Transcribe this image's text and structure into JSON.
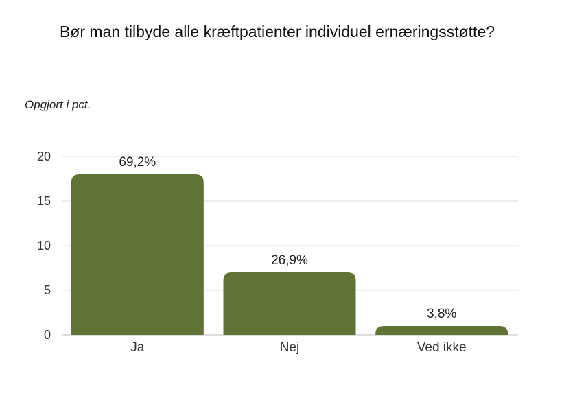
{
  "chart_data": {
    "type": "bar",
    "title": "Bør man tilbyde alle kræftpatienter individuel ernæringsstøtte?",
    "subtitle": "Opgjort i pct.",
    "categories": [
      "Ja",
      "Nej",
      "Ved ikke"
    ],
    "values": [
      18,
      7,
      1
    ],
    "data_labels": [
      "69,2%",
      "26,9%",
      "3,8%"
    ],
    "yticks": [
      "0",
      "5",
      "10",
      "15",
      "20"
    ],
    "ylim": [
      0,
      20
    ],
    "grid": true,
    "bar_color": "#5f7434"
  }
}
